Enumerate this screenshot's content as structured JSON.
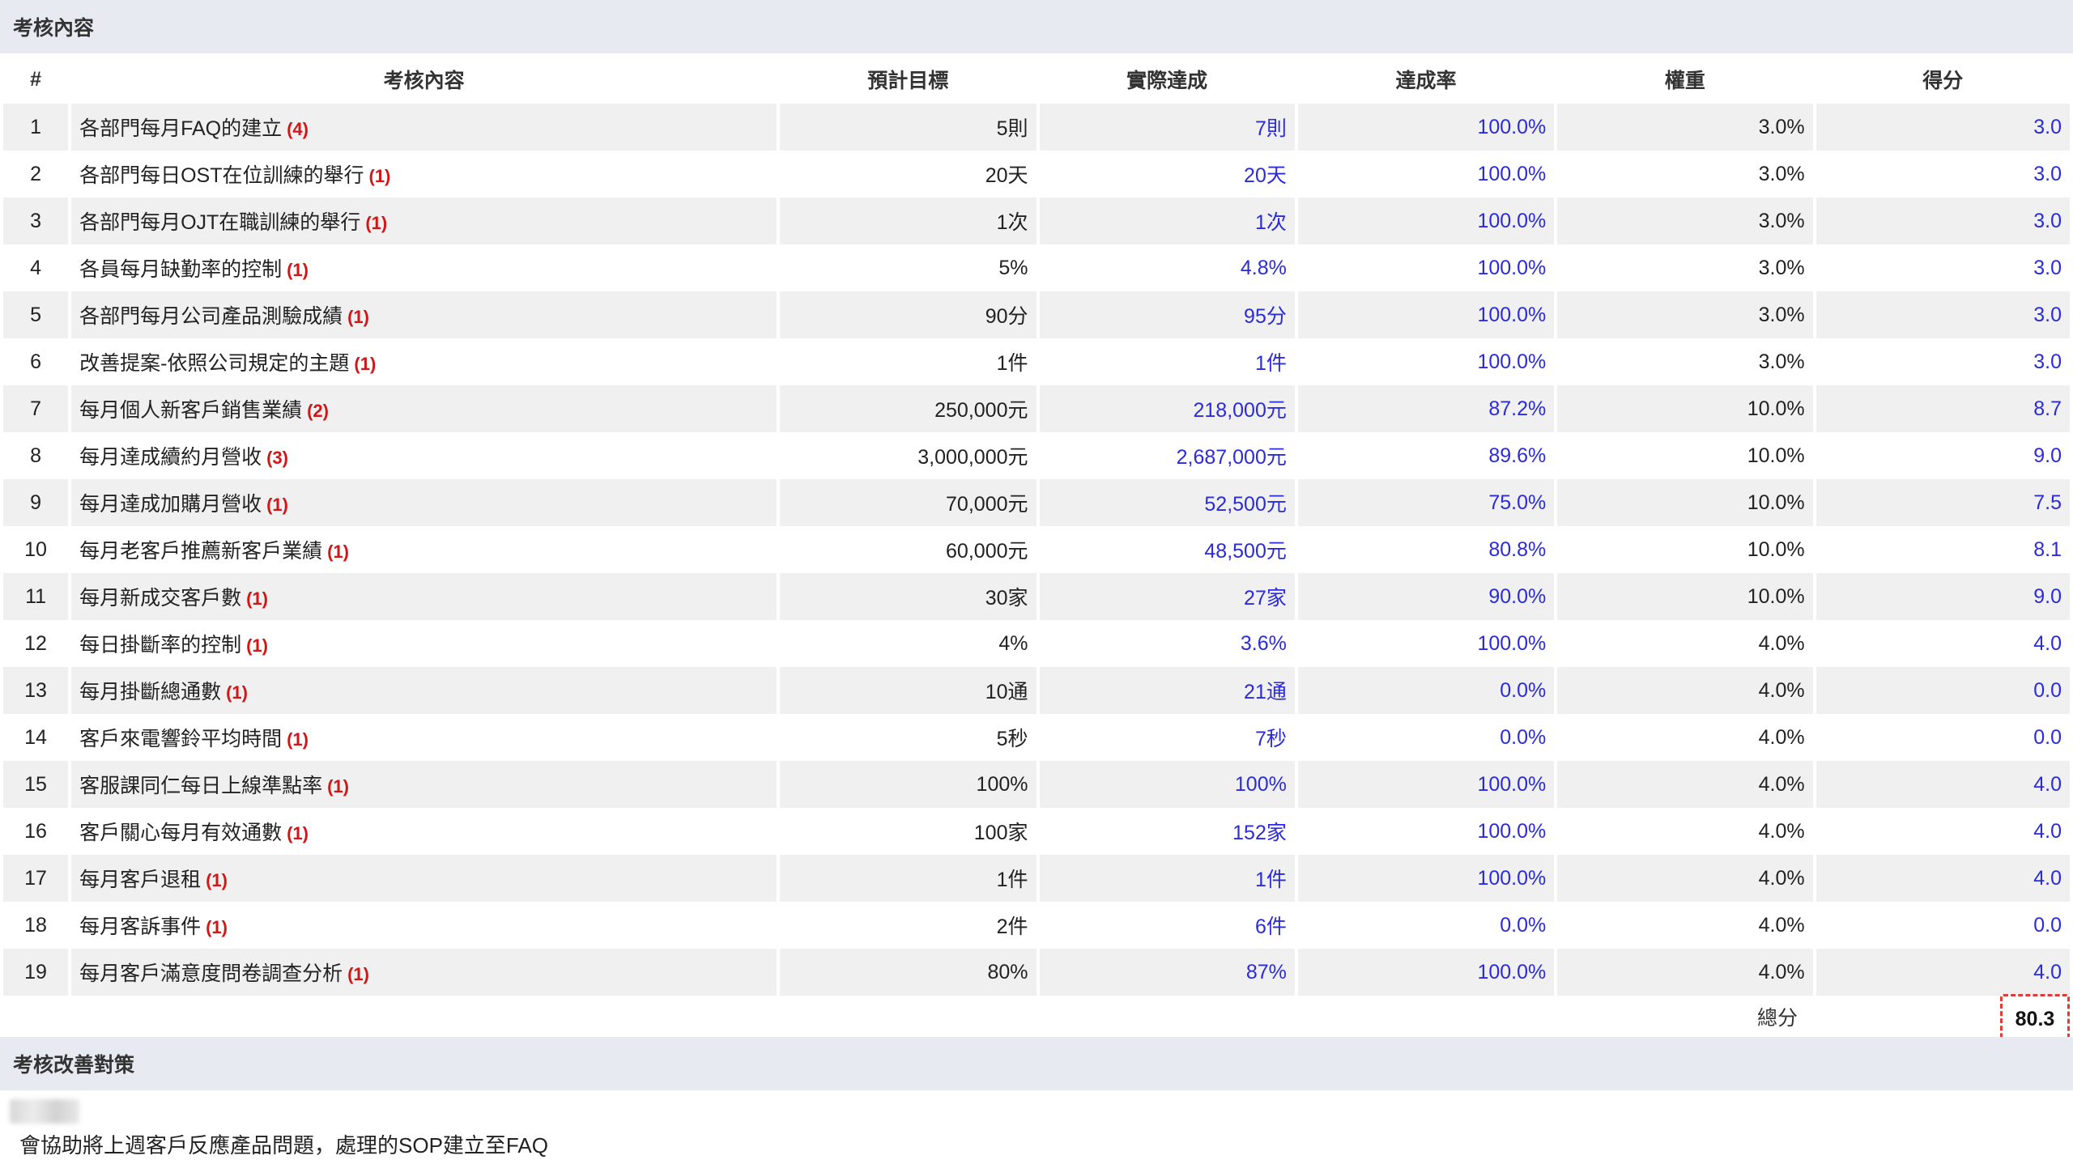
{
  "section1_title": "考核內容",
  "headers": {
    "idx": "#",
    "content": "考核內容",
    "target": "預計目標",
    "actual": "實際達成",
    "rate": "達成率",
    "weight": "權重",
    "score": "得分"
  },
  "rows": [
    {
      "idx": "1",
      "content": "各部門每月FAQ的建立",
      "count": "(4)",
      "target": "5則",
      "actual": "7則",
      "rate": "100.0%",
      "weight": "3.0%",
      "score": "3.0"
    },
    {
      "idx": "2",
      "content": "各部門每日OST在位訓練的舉行",
      "count": "(1)",
      "target": "20天",
      "actual": "20天",
      "rate": "100.0%",
      "weight": "3.0%",
      "score": "3.0"
    },
    {
      "idx": "3",
      "content": "各部門每月OJT在職訓練的舉行",
      "count": "(1)",
      "target": "1次",
      "actual": "1次",
      "rate": "100.0%",
      "weight": "3.0%",
      "score": "3.0"
    },
    {
      "idx": "4",
      "content": "各員每月缺勤率的控制",
      "count": "(1)",
      "target": "5%",
      "actual": "4.8%",
      "rate": "100.0%",
      "weight": "3.0%",
      "score": "3.0"
    },
    {
      "idx": "5",
      "content": "各部門每月公司產品測驗成績",
      "count": "(1)",
      "target": "90分",
      "actual": "95分",
      "rate": "100.0%",
      "weight": "3.0%",
      "score": "3.0"
    },
    {
      "idx": "6",
      "content": "改善提案-依照公司規定的主題",
      "count": "(1)",
      "target": "1件",
      "actual": "1件",
      "rate": "100.0%",
      "weight": "3.0%",
      "score": "3.0"
    },
    {
      "idx": "7",
      "content": "每月個人新客戶銷售業績",
      "count": "(2)",
      "target": "250,000元",
      "actual": "218,000元",
      "rate": "87.2%",
      "weight": "10.0%",
      "score": "8.7"
    },
    {
      "idx": "8",
      "content": "每月達成續約月營收",
      "count": "(3)",
      "target": "3,000,000元",
      "actual": "2,687,000元",
      "rate": "89.6%",
      "weight": "10.0%",
      "score": "9.0"
    },
    {
      "idx": "9",
      "content": "每月達成加購月營收",
      "count": "(1)",
      "target": "70,000元",
      "actual": "52,500元",
      "rate": "75.0%",
      "weight": "10.0%",
      "score": "7.5"
    },
    {
      "idx": "10",
      "content": "每月老客戶推薦新客戶業績",
      "count": "(1)",
      "target": "60,000元",
      "actual": "48,500元",
      "rate": "80.8%",
      "weight": "10.0%",
      "score": "8.1"
    },
    {
      "idx": "11",
      "content": "每月新成交客戶數",
      "count": "(1)",
      "target": "30家",
      "actual": "27家",
      "rate": "90.0%",
      "weight": "10.0%",
      "score": "9.0"
    },
    {
      "idx": "12",
      "content": "每日掛斷率的控制",
      "count": "(1)",
      "target": "4%",
      "actual": "3.6%",
      "rate": "100.0%",
      "weight": "4.0%",
      "score": "4.0"
    },
    {
      "idx": "13",
      "content": "每月掛斷總通數",
      "count": "(1)",
      "target": "10通",
      "actual": "21通",
      "rate": "0.0%",
      "weight": "4.0%",
      "score": "0.0"
    },
    {
      "idx": "14",
      "content": "客戶來電響鈴平均時間",
      "count": "(1)",
      "target": "5秒",
      "actual": "7秒",
      "rate": "0.0%",
      "weight": "4.0%",
      "score": "0.0"
    },
    {
      "idx": "15",
      "content": "客服課同仁每日上線準點率",
      "count": "(1)",
      "target": "100%",
      "actual": "100%",
      "rate": "100.0%",
      "weight": "4.0%",
      "score": "4.0"
    },
    {
      "idx": "16",
      "content": "客戶關心每月有效通數",
      "count": "(1)",
      "target": "100家",
      "actual": "152家",
      "rate": "100.0%",
      "weight": "4.0%",
      "score": "4.0"
    },
    {
      "idx": "17",
      "content": "每月客戶退租",
      "count": "(1)",
      "target": "1件",
      "actual": "1件",
      "rate": "100.0%",
      "weight": "4.0%",
      "score": "4.0"
    },
    {
      "idx": "18",
      "content": "每月客訴事件",
      "count": "(1)",
      "target": "2件",
      "actual": "6件",
      "rate": "0.0%",
      "weight": "4.0%",
      "score": "0.0"
    },
    {
      "idx": "19",
      "content": "每月客戶滿意度問卷調查分析",
      "count": "(1)",
      "target": "80%",
      "actual": "87%",
      "rate": "100.0%",
      "weight": "4.0%",
      "score": "4.0"
    }
  ],
  "total": {
    "label": "總分",
    "value": "80.3"
  },
  "section2_title": "考核改善對策",
  "improvement_note": "會協助將上週客戶反應產品問題，處理的SOP建立至FAQ",
  "colors": {
    "header_bg": "#e7ebf1",
    "row_alt": "#f0f0f0",
    "link_blue": "#2b2bdc",
    "count_red": "#d01616",
    "highlight_border": "#e03a3a"
  }
}
